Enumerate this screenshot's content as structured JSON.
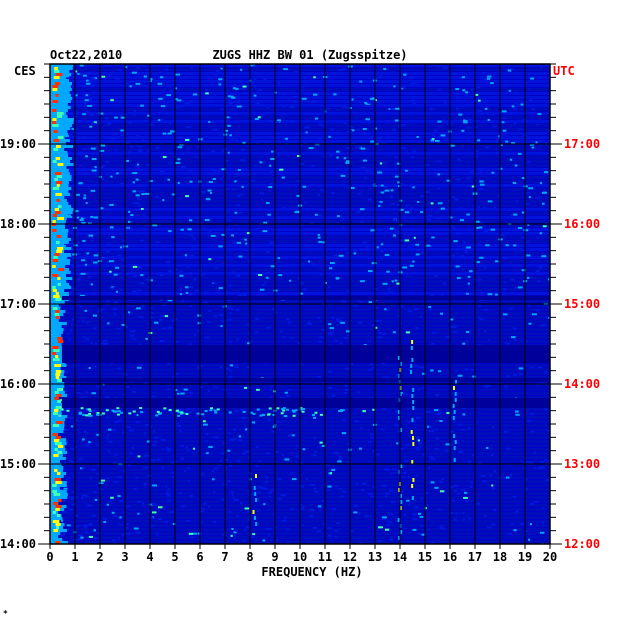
{
  "chart_data": {
    "type": "heatmap",
    "date": "Oct22,2010",
    "title": "ZUGS HHZ BW 01 (Zugsspitze)",
    "left_axis_label": "CES",
    "right_axis_label": "UTC",
    "xlabel": "FREQUENCY (HZ)",
    "x_ticks": [
      "0",
      "1",
      "2",
      "3",
      "4",
      "5",
      "6",
      "7",
      "8",
      "9",
      "10",
      "11",
      "12",
      "13",
      "14",
      "15",
      "16",
      "17",
      "18",
      "19",
      "20"
    ],
    "xlim": [
      0,
      20
    ],
    "left_time_ticks": [
      "19:00",
      "18:00",
      "17:00",
      "16:00",
      "15:00",
      "14:00"
    ],
    "right_time_ticks": [
      "17:00",
      "16:00",
      "15:00",
      "14:00",
      "13:00",
      "12:00"
    ],
    "colors": {
      "background": "#0000c8",
      "low": "#0018e0",
      "mid": "#00a8ff",
      "high": "#40ffb0",
      "peak": "#ffff00",
      "max": "#ff3000",
      "right_axis": "#ff0000",
      "text": "#000000"
    },
    "footnote": "*"
  }
}
